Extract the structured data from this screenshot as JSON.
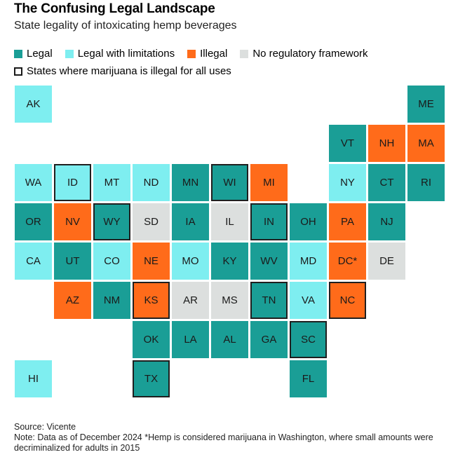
{
  "title": "The Confusing Legal Landscape",
  "subtitle": "State legality of intoxicating hemp beverages",
  "colors": {
    "legal": "#1a9e96",
    "limited": "#7eeef0",
    "illegal": "#ff6b1a",
    "none": "#dcdfde"
  },
  "legend": {
    "legal": "Legal",
    "limited": "Legal with limitations",
    "illegal": "Illegal",
    "none": "No regulatory framework",
    "outline": "States where marijuana is illegal for all uses"
  },
  "states": [
    {
      "abbr": "AK",
      "status": "limited",
      "row": 0,
      "col": 0,
      "outlined": false
    },
    {
      "abbr": "ME",
      "status": "legal",
      "row": 0,
      "col": 10,
      "outlined": false
    },
    {
      "abbr": "VT",
      "status": "legal",
      "row": 1,
      "col": 8,
      "outlined": false
    },
    {
      "abbr": "NH",
      "status": "illegal",
      "row": 1,
      "col": 9,
      "outlined": false
    },
    {
      "abbr": "MA",
      "status": "illegal",
      "row": 1,
      "col": 10,
      "outlined": false
    },
    {
      "abbr": "WA",
      "status": "limited",
      "row": 2,
      "col": 0,
      "outlined": false
    },
    {
      "abbr": "ID",
      "status": "limited",
      "row": 2,
      "col": 1,
      "outlined": true
    },
    {
      "abbr": "MT",
      "status": "limited",
      "row": 2,
      "col": 2,
      "outlined": false
    },
    {
      "abbr": "ND",
      "status": "limited",
      "row": 2,
      "col": 3,
      "outlined": false
    },
    {
      "abbr": "MN",
      "status": "legal",
      "row": 2,
      "col": 4,
      "outlined": false
    },
    {
      "abbr": "WI",
      "status": "legal",
      "row": 2,
      "col": 5,
      "outlined": true
    },
    {
      "abbr": "MI",
      "status": "illegal",
      "row": 2,
      "col": 6,
      "outlined": false
    },
    {
      "abbr": "NY",
      "status": "limited",
      "row": 2,
      "col": 8,
      "outlined": false
    },
    {
      "abbr": "CT",
      "status": "legal",
      "row": 2,
      "col": 9,
      "outlined": false
    },
    {
      "abbr": "RI",
      "status": "legal",
      "row": 2,
      "col": 10,
      "outlined": false
    },
    {
      "abbr": "OR",
      "status": "legal",
      "row": 3,
      "col": 0,
      "outlined": false
    },
    {
      "abbr": "NV",
      "status": "illegal",
      "row": 3,
      "col": 1,
      "outlined": false
    },
    {
      "abbr": "WY",
      "status": "legal",
      "row": 3,
      "col": 2,
      "outlined": true
    },
    {
      "abbr": "SD",
      "status": "none",
      "row": 3,
      "col": 3,
      "outlined": false
    },
    {
      "abbr": "IA",
      "status": "legal",
      "row": 3,
      "col": 4,
      "outlined": false
    },
    {
      "abbr": "IL",
      "status": "none",
      "row": 3,
      "col": 5,
      "outlined": false
    },
    {
      "abbr": "IN",
      "status": "legal",
      "row": 3,
      "col": 6,
      "outlined": true
    },
    {
      "abbr": "OH",
      "status": "legal",
      "row": 3,
      "col": 7,
      "outlined": false
    },
    {
      "abbr": "PA",
      "status": "illegal",
      "row": 3,
      "col": 8,
      "outlined": false
    },
    {
      "abbr": "NJ",
      "status": "legal",
      "row": 3,
      "col": 9,
      "outlined": false
    },
    {
      "abbr": "CA",
      "status": "limited",
      "row": 4,
      "col": 0,
      "outlined": false
    },
    {
      "abbr": "UT",
      "status": "legal",
      "row": 4,
      "col": 1,
      "outlined": false
    },
    {
      "abbr": "CO",
      "status": "limited",
      "row": 4,
      "col": 2,
      "outlined": false
    },
    {
      "abbr": "NE",
      "status": "illegal",
      "row": 4,
      "col": 3,
      "outlined": false
    },
    {
      "abbr": "MO",
      "status": "limited",
      "row": 4,
      "col": 4,
      "outlined": false
    },
    {
      "abbr": "KY",
      "status": "legal",
      "row": 4,
      "col": 5,
      "outlined": false
    },
    {
      "abbr": "WV",
      "status": "legal",
      "row": 4,
      "col": 6,
      "outlined": false
    },
    {
      "abbr": "MD",
      "status": "limited",
      "row": 4,
      "col": 7,
      "outlined": false
    },
    {
      "abbr": "DC*",
      "status": "illegal",
      "row": 4,
      "col": 8,
      "outlined": false
    },
    {
      "abbr": "DE",
      "status": "none",
      "row": 4,
      "col": 9,
      "outlined": false
    },
    {
      "abbr": "AZ",
      "status": "illegal",
      "row": 5,
      "col": 1,
      "outlined": false
    },
    {
      "abbr": "NM",
      "status": "legal",
      "row": 5,
      "col": 2,
      "outlined": false
    },
    {
      "abbr": "KS",
      "status": "illegal",
      "row": 5,
      "col": 3,
      "outlined": true
    },
    {
      "abbr": "AR",
      "status": "none",
      "row": 5,
      "col": 4,
      "outlined": false
    },
    {
      "abbr": "MS",
      "status": "none",
      "row": 5,
      "col": 5,
      "outlined": false
    },
    {
      "abbr": "TN",
      "status": "legal",
      "row": 5,
      "col": 6,
      "outlined": true
    },
    {
      "abbr": "VA",
      "status": "limited",
      "row": 5,
      "col": 7,
      "outlined": false
    },
    {
      "abbr": "NC",
      "status": "illegal",
      "row": 5,
      "col": 8,
      "outlined": true
    },
    {
      "abbr": "OK",
      "status": "legal",
      "row": 6,
      "col": 3,
      "outlined": false
    },
    {
      "abbr": "LA",
      "status": "legal",
      "row": 6,
      "col": 4,
      "outlined": false
    },
    {
      "abbr": "AL",
      "status": "legal",
      "row": 6,
      "col": 5,
      "outlined": false
    },
    {
      "abbr": "GA",
      "status": "legal",
      "row": 6,
      "col": 6,
      "outlined": false
    },
    {
      "abbr": "SC",
      "status": "legal",
      "row": 6,
      "col": 7,
      "outlined": true
    },
    {
      "abbr": "HI",
      "status": "limited",
      "row": 7,
      "col": 0,
      "outlined": false
    },
    {
      "abbr": "TX",
      "status": "legal",
      "row": 7,
      "col": 3,
      "outlined": true
    },
    {
      "abbr": "FL",
      "status": "legal",
      "row": 7,
      "col": 7,
      "outlined": false
    }
  ],
  "footer": {
    "source": "Source: Vicente",
    "note": "Note: Data as of December 2024 *Hemp is considered marijuana in Washington, where small amounts were decriminalized for adults in 2015"
  }
}
